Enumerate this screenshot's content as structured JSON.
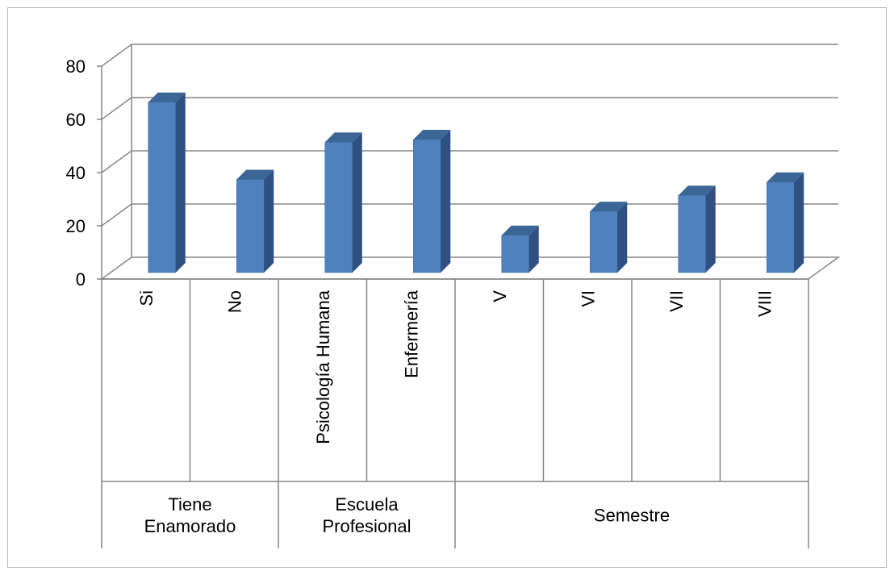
{
  "chart_data": {
    "type": "bar",
    "title": "",
    "xlabel": "",
    "ylabel": "",
    "ylim": [
      0,
      80
    ],
    "yticks": [
      "0",
      "20",
      "40",
      "60",
      "80"
    ],
    "grid": true,
    "legend": "none",
    "style": "3d-column",
    "categories": [
      "Si",
      "No",
      "Psicología Humana",
      "Enfermería",
      "V",
      "VI",
      "VII",
      "VIII"
    ],
    "values": [
      64,
      35,
      49,
      50,
      14,
      23,
      29,
      34
    ],
    "groups": [
      {
        "label_lines": [
          "Tiene",
          "Enamorado"
        ],
        "categories": [
          "Si",
          "No"
        ]
      },
      {
        "label_lines": [
          "Escuela",
          "Profesional"
        ],
        "categories": [
          "Psicología Humana",
          "Enfermería"
        ]
      },
      {
        "label_lines": [
          "Semestre"
        ],
        "categories": [
          "V",
          "VI",
          "VII",
          "VIII"
        ]
      }
    ],
    "colors": {
      "bar_front": "#4F81BD",
      "bar_side": "#2E5181",
      "bar_top": "#3C6696",
      "gridline": "#868686",
      "frame": "#868686",
      "border": "#b7b7b7"
    }
  }
}
